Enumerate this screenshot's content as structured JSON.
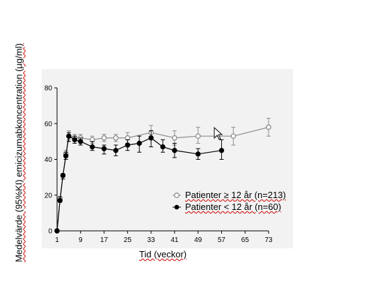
{
  "chart_data": {
    "type": "line",
    "ylabel": "Medelvärde (95%KI) emicizumabkoncentration (µg/ml)",
    "xlabel": "Tid (veckor)",
    "ylim": [
      0,
      80
    ],
    "xlim": [
      1,
      73
    ],
    "y_ticks": [
      "0",
      "20",
      "40",
      "60",
      "80"
    ],
    "x_ticks": [
      "1",
      "9",
      "17",
      "25",
      "33",
      "41",
      "49",
      "57",
      "65",
      "73"
    ],
    "legend_position": "center-right",
    "grid": false,
    "series": [
      {
        "name": "Patienter ≥ 12 år (n=213)",
        "color": "#8c8c8c",
        "marker": "open-circle",
        "points": [
          {
            "x": 1,
            "y": 0,
            "lo": 0,
            "hi": 0
          },
          {
            "x": 2,
            "y": 18,
            "lo": 17,
            "hi": 19
          },
          {
            "x": 3,
            "y": 31,
            "lo": 30,
            "hi": 32
          },
          {
            "x": 4,
            "y": 43,
            "lo": 41,
            "hi": 45
          },
          {
            "x": 5,
            "y": 53,
            "lo": 51,
            "hi": 56
          },
          {
            "x": 7,
            "y": 52,
            "lo": 50,
            "hi": 54
          },
          {
            "x": 9,
            "y": 52,
            "lo": 50,
            "hi": 54
          },
          {
            "x": 13,
            "y": 51,
            "lo": 49,
            "hi": 53
          },
          {
            "x": 17,
            "y": 52,
            "lo": 50,
            "hi": 54
          },
          {
            "x": 21,
            "y": 52,
            "lo": 50,
            "hi": 54
          },
          {
            "x": 25,
            "y": 52,
            "lo": 49,
            "hi": 55
          },
          {
            "x": 33,
            "y": 55,
            "lo": 52,
            "hi": 59
          },
          {
            "x": 41,
            "y": 52,
            "lo": 48,
            "hi": 56
          },
          {
            "x": 49,
            "y": 53,
            "lo": 49,
            "hi": 58
          },
          {
            "x": 61,
            "y": 53,
            "lo": 48,
            "hi": 58
          },
          {
            "x": 73,
            "y": 58,
            "lo": 53,
            "hi": 63
          }
        ]
      },
      {
        "name": "Patienter < 12 år (n=60)",
        "color": "#000000",
        "marker": "filled-circle",
        "points": [
          {
            "x": 1,
            "y": 0,
            "lo": 0,
            "hi": 0
          },
          {
            "x": 2,
            "y": 17,
            "lo": 16,
            "hi": 19
          },
          {
            "x": 3,
            "y": 31,
            "lo": 29,
            "hi": 32
          },
          {
            "x": 4,
            "y": 42,
            "lo": 40,
            "hi": 44
          },
          {
            "x": 5,
            "y": 53,
            "lo": 50,
            "hi": 55
          },
          {
            "x": 7,
            "y": 51,
            "lo": 49,
            "hi": 53
          },
          {
            "x": 9,
            "y": 50,
            "lo": 48,
            "hi": 52
          },
          {
            "x": 13,
            "y": 47,
            "lo": 45,
            "hi": 50
          },
          {
            "x": 17,
            "y": 46,
            "lo": 43,
            "hi": 48
          },
          {
            "x": 21,
            "y": 45,
            "lo": 42,
            "hi": 48
          },
          {
            "x": 25,
            "y": 48,
            "lo": 45,
            "hi": 51
          },
          {
            "x": 29,
            "y": 49,
            "lo": 44,
            "hi": 53
          },
          {
            "x": 33,
            "y": 52,
            "lo": 47,
            "hi": 56
          },
          {
            "x": 37,
            "y": 47,
            "lo": 44,
            "hi": 51
          },
          {
            "x": 41,
            "y": 45,
            "lo": 41,
            "hi": 49
          },
          {
            "x": 49,
            "y": 43,
            "lo": 40,
            "hi": 46
          },
          {
            "x": 57,
            "y": 45,
            "lo": 40,
            "hi": 51
          }
        ]
      }
    ]
  }
}
